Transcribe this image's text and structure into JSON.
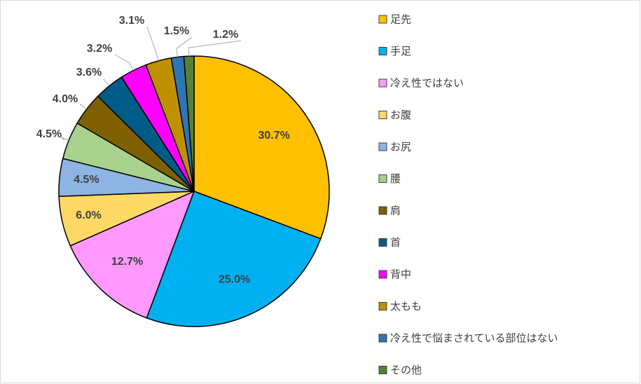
{
  "chart_data": {
    "type": "pie",
    "categories": [
      "足先",
      "手足",
      "冷え性ではない",
      "お腹",
      "お尻",
      "腰",
      "肩",
      "首",
      "背中",
      "太もも",
      "冷え性で悩まされている部位はない",
      "その他"
    ],
    "values": [
      30.7,
      25.0,
      12.7,
      6.0,
      4.5,
      4.5,
      4.0,
      3.6,
      3.2,
      3.1,
      1.5,
      1.2
    ],
    "value_labels": [
      "30.7%",
      "25.0%",
      "12.7%",
      "6.0%",
      "4.5%",
      "4.5%",
      "4.0%",
      "3.6%",
      "3.2%",
      "3.1%",
      "1.5%",
      "1.2%"
    ],
    "colors": [
      "#FFC000",
      "#00B0F0",
      "#FF99FF",
      "#FFD966",
      "#8EB4E3",
      "#A9D18E",
      "#7F6000",
      "#005C86",
      "#FF00FF",
      "#BF9000",
      "#2E75B6",
      "#548235"
    ],
    "legend": "right"
  }
}
